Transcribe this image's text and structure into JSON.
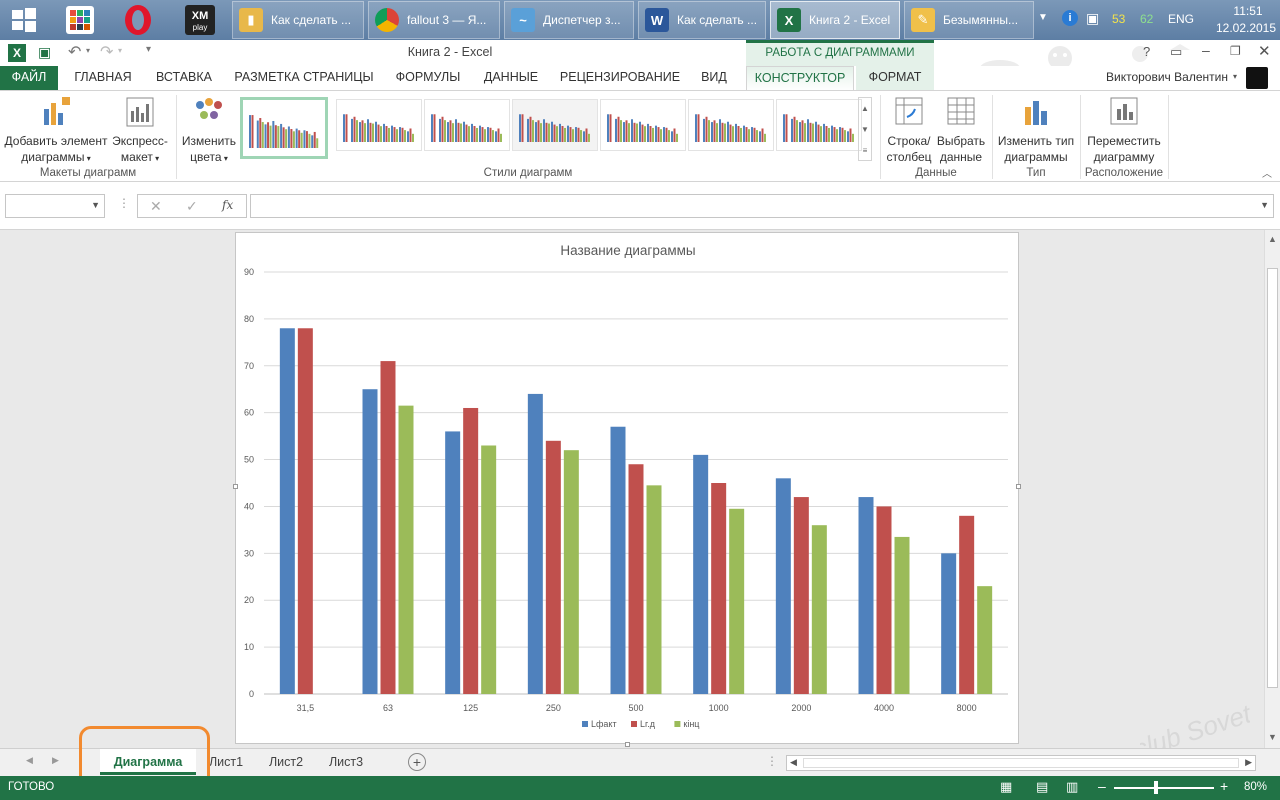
{
  "taskbar": {
    "tasks": [
      {
        "label": "Как сделать ...",
        "icon": "folder-icon"
      },
      {
        "label": "fallout 3 — Я...",
        "icon": "chrome-icon"
      },
      {
        "label": "Диспетчер з...",
        "icon": "task-manager-icon"
      },
      {
        "label": "Как сделать ...",
        "icon": "word-icon"
      },
      {
        "label": "Книга 2 - Excel",
        "icon": "excel-icon"
      },
      {
        "label": "Безымянны...",
        "icon": "paint-icon"
      }
    ],
    "tray": {
      "num1": "53",
      "num2": "62",
      "lang": "ENG",
      "time": "11:51",
      "date": "12.02.2015"
    }
  },
  "window": {
    "title": "Книга 2 - Excel",
    "context_tab_header": "РАБОТА С ДИАГРАММАМИ",
    "user": "Викторович Валентин"
  },
  "tabs": [
    "ФАЙЛ",
    "ГЛАВНАЯ",
    "ВСТАВКА",
    "РАЗМЕТКА СТРАНИЦЫ",
    "ФОРМУЛЫ",
    "ДАННЫЕ",
    "РЕЦЕНЗИРОВАНИЕ",
    "ВИД",
    "КОНСТРУКТОР",
    "ФОРМАТ"
  ],
  "ribbon": {
    "add_element": [
      "Добавить элемент",
      "диаграммы"
    ],
    "express": [
      "Экспресс-",
      "макет"
    ],
    "change_colors": [
      "Изменить",
      "цвета"
    ],
    "row_col": [
      "Строка/",
      "столбец"
    ],
    "select_data": [
      "Выбрать",
      "данные"
    ],
    "change_type": [
      "Изменить тип",
      "диаграммы"
    ],
    "move_chart": [
      "Переместить",
      "диаграмму"
    ],
    "groups": {
      "layouts": "Макеты диаграмм",
      "styles": "Стили диаграмм",
      "data": "Данные",
      "type": "Тип",
      "location": "Расположение"
    }
  },
  "formula_bar": {
    "fx": "fx",
    "name_box": "",
    "value": ""
  },
  "sheets": [
    "Диаграмма",
    "Лист1",
    "Лист2",
    "Лист3"
  ],
  "status": {
    "ready": "ГОТОВО",
    "zoom": "80%"
  },
  "watermark": "club Sovet",
  "colors": {
    "excel_green": "#217346",
    "series1": "#4f81bd",
    "series2": "#c0504d",
    "series3": "#9bbb59"
  },
  "chart_data": {
    "type": "bar",
    "title": "Название диаграммы",
    "categories": [
      "31,5",
      "63",
      "125",
      "250",
      "500",
      "1000",
      "2000",
      "4000",
      "8000"
    ],
    "series": [
      {
        "name": "Lфакт",
        "color": "#4f81bd",
        "values": [
          78,
          65,
          56,
          64,
          57,
          51,
          46,
          42,
          30
        ]
      },
      {
        "name": "Lг.д",
        "color": "#c0504d",
        "values": [
          78,
          71,
          61,
          54,
          49,
          45,
          42,
          40,
          38
        ]
      },
      {
        "name": "кінц",
        "color": "#9bbb59",
        "values": [
          null,
          61.5,
          53,
          52,
          44.5,
          39.5,
          36,
          33.5,
          23
        ]
      }
    ],
    "ylim": [
      0,
      90
    ],
    "yticks": [
      0,
      10,
      20,
      30,
      40,
      50,
      60,
      70,
      80,
      90
    ],
    "grid": true,
    "legend": "bottom"
  }
}
